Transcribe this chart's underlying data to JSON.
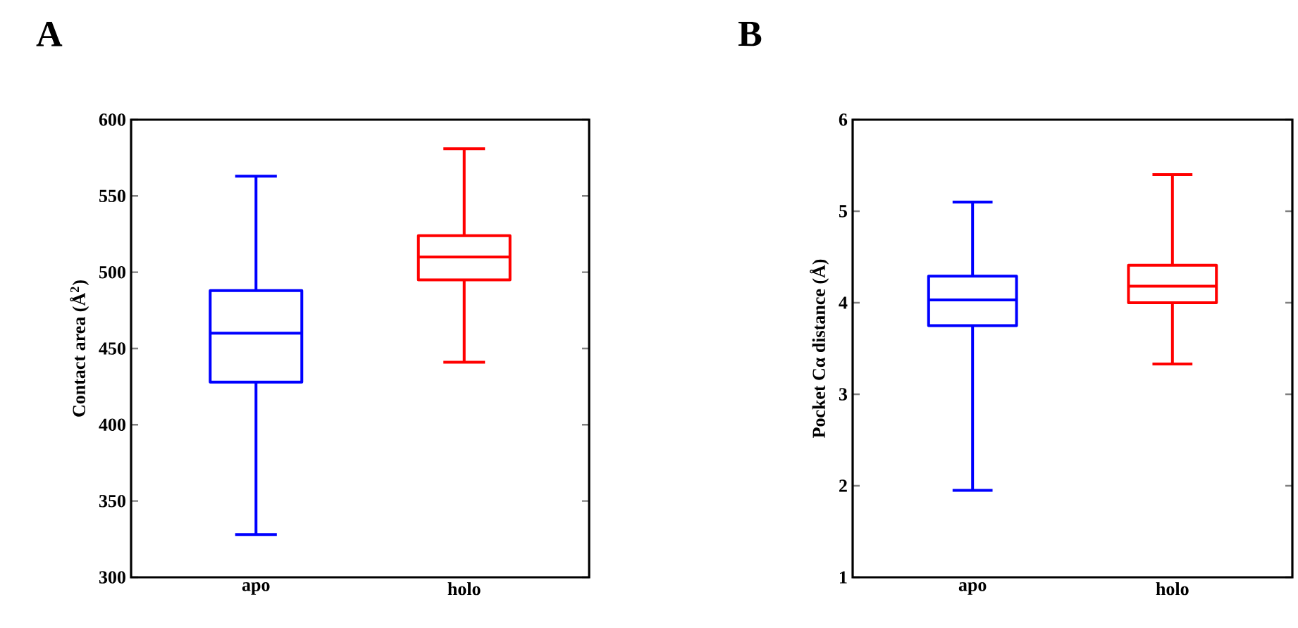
{
  "chart_data": [
    {
      "type": "box",
      "title": "A",
      "ylabel": "Contact area (Å$^{2}$)",
      "categories": [
        "apo",
        "holo"
      ],
      "colors": [
        "#0000ff",
        "#ff0000"
      ],
      "boxes": [
        {
          "low": 328,
          "q1": 428,
          "median": 460,
          "q3": 488,
          "high": 563
        },
        {
          "low": 441,
          "q1": 495,
          "median": 510,
          "q3": 524,
          "high": 581
        }
      ],
      "ylim": [
        300,
        600
      ],
      "yticks": [
        300,
        350,
        400,
        450,
        500,
        550,
        600
      ]
    },
    {
      "type": "box",
      "title": "B",
      "ylabel": "Pocket Cα distance (Å)",
      "categories": [
        "apo",
        "holo"
      ],
      "colors": [
        "#0000ff",
        "#ff0000"
      ],
      "boxes": [
        {
          "low": 1.95,
          "q1": 3.75,
          "median": 4.03,
          "q3": 4.29,
          "high": 5.1
        },
        {
          "low": 3.33,
          "q1": 4.0,
          "median": 4.18,
          "q3": 4.41,
          "high": 5.4
        }
      ],
      "ylim": [
        1,
        6
      ],
      "yticks": [
        1,
        2,
        3,
        4,
        5,
        6
      ]
    }
  ]
}
